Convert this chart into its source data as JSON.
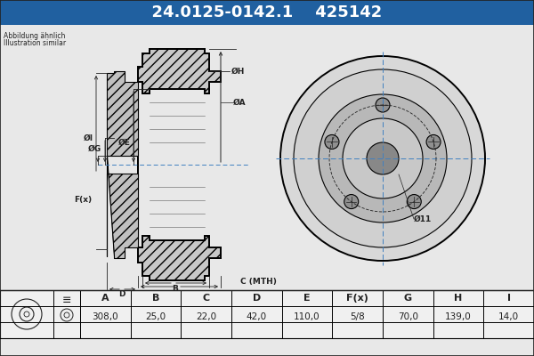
{
  "title_part1": "24.0125-0142.1",
  "title_part2": "425142",
  "title_bg": "#2060a0",
  "title_color": "#ffffff",
  "bg_color": "#e8e8e8",
  "note_line1": "Abbildung ähnlich",
  "note_line2": "Illustration similar",
  "col_headers": [
    "A",
    "B",
    "C",
    "D",
    "E",
    "F(x)",
    "G",
    "H",
    "I"
  ],
  "col_values": [
    "308,0",
    "25,0",
    "22,0",
    "42,0",
    "110,0",
    "5/8",
    "70,0",
    "139,0",
    "14,0"
  ],
  "dim_label_oi": "ØI",
  "dim_label_og": "ØG",
  "dim_label_oe": "ØE",
  "dim_label_oh": "ØH",
  "dim_label_oa": "ØA",
  "dim_label_fx": "F(x)",
  "dim_label_b": "B",
  "dim_label_c": "C (MTH)",
  "dim_label_d": "D",
  "dim_label_o11": "Ø11"
}
